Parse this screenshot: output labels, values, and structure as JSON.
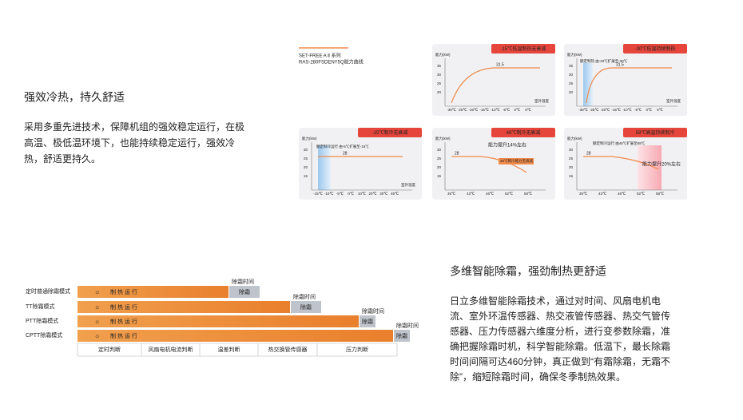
{
  "section1": {
    "title": "强效冷热，持久舒适",
    "body": [
      "采用多重先进技术，保障机组的强效稳定运行，在极",
      "高温、极低温环境下，也能持续稳定运行，强效冷",
      "热，舒适更持久。"
    ]
  },
  "curves": {
    "series": "SET-FREE A Ⅱ 系列",
    "model": "RAS-280FSDENY5Q能力曲线",
    "cards": [
      {
        "tag": "-15℃低温制热无衰减",
        "y_label": "能力(kW)",
        "yticks": [
          "35",
          "30",
          "25",
          "20"
        ],
        "value_label": "31.5",
        "xticks": [
          "-30℃",
          "-25℃",
          "-20℃",
          "-15℃",
          "-10℃",
          "-5℃",
          "0℃",
          "5℃"
        ],
        "x_label": "室外温度"
      },
      {
        "tag": "-30℃低温持续制热",
        "y_label": "能力(kW)",
        "yticks": [
          "35",
          "30",
          "25",
          "20"
        ],
        "value_label": "31.5",
        "note": "额定制热 由-20℃扩展至-30℃",
        "xticks": [
          "-30℃",
          "-25℃",
          "-20℃",
          "-15℃",
          "-10℃",
          "-5℃",
          "0℃",
          "5℃"
        ],
        "x_label": "室外温度"
      },
      {
        "tag": "-15℃制冷无衰减",
        "y_label": "能力(kW)",
        "yticks": [
          "30",
          "25",
          "20",
          "15"
        ],
        "value_label": "28",
        "note": "额定制冷运行 由-5℃扩展至-15℃",
        "xticks": [
          "-15℃",
          "-10℃",
          "-5℃",
          "0℃",
          "10℃",
          "20℃",
          "30℃",
          "46℃"
        ],
        "x_label": "室外温度"
      },
      {
        "tag": "46℃制冷无衰减",
        "y_label": "能力(kW)",
        "yticks": [
          "30",
          "25",
          "20",
          "15"
        ],
        "value_label": "28",
        "callout": "能力提升14%左右",
        "note": "46℃制冷能力无衰减",
        "xticks": [
          "35℃",
          "43℃",
          "46℃",
          "52℃",
          "58℃"
        ]
      },
      {
        "tag": "58℃高温持续制冷",
        "y_label": "能力(kW)",
        "yticks": [
          "30",
          "25",
          "20",
          "15"
        ],
        "value_label": "28",
        "note": "额定制冷运行 由46℃扩展至58℃",
        "callout": "能力提升20%左右",
        "xticks": [
          "35℃",
          "43℃",
          "46℃",
          "52℃",
          "58℃"
        ]
      }
    ]
  },
  "defrost": {
    "rows": [
      {
        "label": "定时普通除霜模式",
        "run": "制 热 运 行",
        "defrost": "除霜",
        "defrost_time": "除霜时间"
      },
      {
        "label": "TT除霜模式",
        "run": "制 热 运 行",
        "defrost": "除霜",
        "defrost_time": "除霜时间"
      },
      {
        "label": "PTT除霜模式",
        "run": "制 热 运 行",
        "defrost": "除霜",
        "defrost_time": "除霜时间"
      },
      {
        "label": "CPTT除霜模式",
        "run": "制 热 运 行",
        "defrost": "除霜",
        "defrost_time": "除霜时间"
      }
    ],
    "criteria": [
      "定时判断",
      "风扇电机电流判断",
      "温差判断",
      "热交换管传感器",
      "压力判断"
    ]
  },
  "section2": {
    "title": "多维智能除霜，强劲制热更舒适",
    "body": [
      "日立多维智能除霜技术，通过对时间、风扇电机电",
      "流、室外环温传感器、热交液管传感器、热交气管传",
      "感器、压力传感器六维度分析，进行变参数除霜，准",
      "确把握除霜时机，科学智能除霜。低温下，最长除霜",
      "时间间隔可达460分钟，真正做到“有霜除霜，无霜不",
      "除”，缩短除霜时间，确保冬季制热效果。"
    ]
  }
}
